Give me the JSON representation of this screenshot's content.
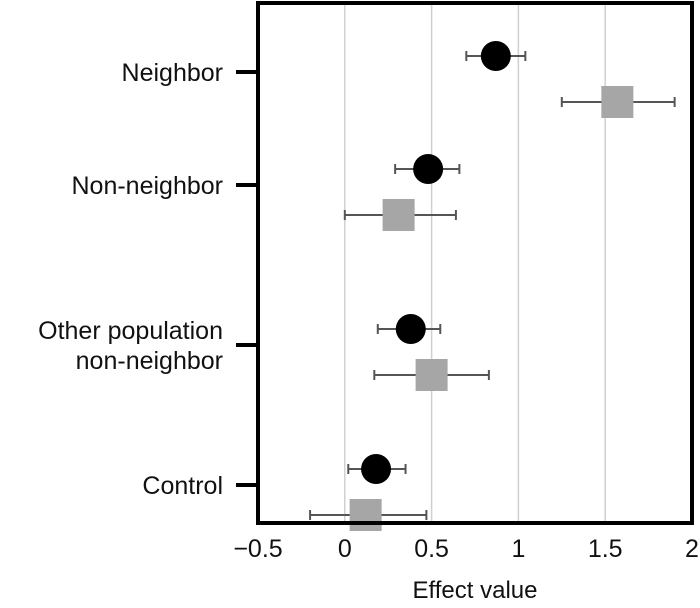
{
  "chart_data": {
    "type": "scatter",
    "orientation": "horizontal",
    "title": "",
    "xlabel": "Effect value",
    "ylabel": "",
    "xlim": [
      -0.5,
      2
    ],
    "x_ticks": [
      -0.5,
      0,
      0.5,
      1,
      1.5,
      2
    ],
    "x_tick_labels": [
      "−0.5",
      "0",
      "0.5",
      "1",
      "1.5",
      "2"
    ],
    "grid": "vertical",
    "legend": "none",
    "categories": [
      {
        "label_lines": [
          "Neighbor"
        ]
      },
      {
        "label_lines": [
          "Non-neighbor"
        ]
      },
      {
        "label_lines": [
          "Other population",
          "non-neighbor"
        ]
      },
      {
        "label_lines": [
          "Control"
        ]
      }
    ],
    "series": [
      {
        "marker": "circle",
        "color": "#000000",
        "points": [
          {
            "category": 0,
            "value": 0.87,
            "ci": [
              0.7,
              1.04
            ]
          },
          {
            "category": 1,
            "value": 0.48,
            "ci": [
              0.29,
              0.66
            ]
          },
          {
            "category": 2,
            "value": 0.38,
            "ci": [
              0.19,
              0.55
            ]
          },
          {
            "category": 3,
            "value": 0.18,
            "ci": [
              0.02,
              0.35
            ]
          }
        ]
      },
      {
        "marker": "square",
        "color": "#a6a6a6",
        "points": [
          {
            "category": 0,
            "value": 1.57,
            "ci": [
              1.25,
              1.9
            ]
          },
          {
            "category": 1,
            "value": 0.31,
            "ci": [
              0.0,
              0.64
            ]
          },
          {
            "category": 2,
            "value": 0.5,
            "ci": [
              0.17,
              0.83
            ]
          },
          {
            "category": 3,
            "value": 0.12,
            "ci": [
              -0.2,
              0.47
            ]
          }
        ]
      }
    ]
  }
}
